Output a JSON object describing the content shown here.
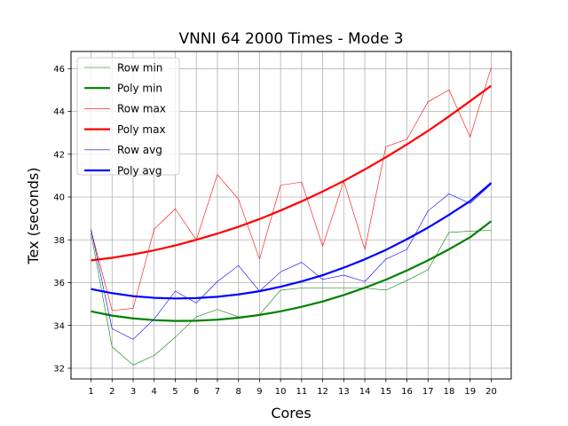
{
  "chart_data": {
    "type": "line",
    "title": "VNNI 64 2000 Times - Mode 3",
    "xlabel": "Cores",
    "ylabel": "Tex (seconds)",
    "x": [
      1,
      2,
      3,
      4,
      5,
      6,
      7,
      8,
      9,
      10,
      11,
      12,
      13,
      14,
      15,
      16,
      17,
      18,
      19,
      20
    ],
    "xlim": [
      0.05,
      20.95
    ],
    "ylim": [
      31.5,
      46.8
    ],
    "yticks": [
      32,
      34,
      36,
      38,
      40,
      42,
      44,
      46
    ],
    "grid": true,
    "legend_position": "top-left",
    "series": [
      {
        "name": "Row min",
        "color": "#008000",
        "width": 0.6,
        "values": [
          38.3,
          33.0,
          32.15,
          32.6,
          33.45,
          34.4,
          34.75,
          34.4,
          34.5,
          35.65,
          35.75,
          35.75,
          35.75,
          35.75,
          35.65,
          36.1,
          36.6,
          38.35,
          38.4,
          38.45
        ]
      },
      {
        "name": "Poly min",
        "color": "#008000",
        "width": 2.2,
        "values": [
          34.66,
          34.46,
          34.33,
          34.25,
          34.21,
          34.22,
          34.27,
          34.36,
          34.49,
          34.66,
          34.87,
          35.12,
          35.42,
          35.76,
          36.14,
          36.57,
          37.04,
          37.56,
          38.12,
          38.87
        ]
      },
      {
        "name": "Row max",
        "color": "#ff0000",
        "width": 0.6,
        "values": [
          38.45,
          34.7,
          34.8,
          38.5,
          39.45,
          38.0,
          41.05,
          39.9,
          37.1,
          40.55,
          40.7,
          37.7,
          40.75,
          37.55,
          42.35,
          42.7,
          44.45,
          45.0,
          42.8,
          46.05
        ]
      },
      {
        "name": "Poly max",
        "color": "#ff0000",
        "width": 2.2,
        "values": [
          37.04,
          37.16,
          37.32,
          37.51,
          37.74,
          38.0,
          38.29,
          38.61,
          38.97,
          39.37,
          39.8,
          40.26,
          40.75,
          41.29,
          41.86,
          42.46,
          43.09,
          43.77,
          44.48,
          45.2
        ]
      },
      {
        "name": "Row avg",
        "color": "#0000ff",
        "width": 0.6,
        "values": [
          38.5,
          33.85,
          33.35,
          34.3,
          35.6,
          35.05,
          36.05,
          36.8,
          35.6,
          36.5,
          36.95,
          36.15,
          36.35,
          36.05,
          37.1,
          37.55,
          39.35,
          40.15,
          39.7,
          40.6
        ]
      },
      {
        "name": "Poly avg",
        "color": "#0000ff",
        "width": 2.2,
        "values": [
          35.7,
          35.51,
          35.37,
          35.29,
          35.26,
          35.28,
          35.34,
          35.45,
          35.6,
          35.81,
          36.06,
          36.35,
          36.7,
          37.09,
          37.53,
          38.03,
          38.57,
          39.17,
          39.81,
          40.66
        ]
      }
    ]
  }
}
